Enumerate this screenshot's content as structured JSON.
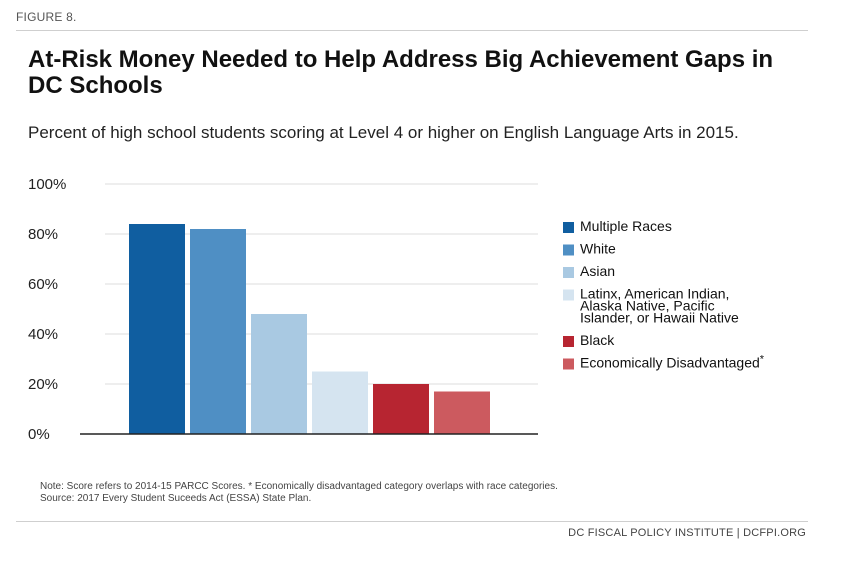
{
  "figure_label": "FIGURE 8.",
  "title": "At-Risk Money Needed to Help Address Big Achievement Gaps in DC Schools",
  "subtitle": "Percent of high school students scoring at Level 4 or higher on English Language Arts in 2015.",
  "note_line1": "Note: Score refers to 2014-15 PARCC Scores. * Economically disadvantaged category overlaps with race categories.",
  "note_line2": "Source: 2017 Every Student Suceeds Act (ESSA) State Plan.",
  "credit": "DC FISCAL POLICY INSTITUTE | DCFPI.ORG",
  "chart_data": {
    "type": "bar",
    "categories": [
      "Multiple Races",
      "White",
      "Asian",
      "Latinx, American Indian, Alaska Native, Pacific Islander, or Hawaii Native",
      "Black",
      "Economically Disadvantaged"
    ],
    "values": [
      84,
      82,
      48,
      25,
      20,
      17
    ],
    "colors": [
      "#105ea0",
      "#4f8fc4",
      "#a9c9e2",
      "#d5e4f0",
      "#b72531",
      "#cc5a5f"
    ],
    "legend_labels": [
      [
        "Multiple Races"
      ],
      [
        "White"
      ],
      [
        "Asian"
      ],
      [
        "Latinx, American Indian,",
        "Alaska Native, Pacific",
        "Islander, or Hawaii Native"
      ],
      [
        "Black"
      ],
      [
        "Economically Disadvantaged"
      ]
    ],
    "legend_footnote_marker": "*",
    "legend_footnote_index": 5,
    "yticks": [
      "0%",
      "20%",
      "40%",
      "60%",
      "80%",
      "100%"
    ],
    "ylim": [
      0,
      100
    ],
    "grid": true,
    "legend_position": "right",
    "xlabel": "",
    "ylabel": ""
  }
}
